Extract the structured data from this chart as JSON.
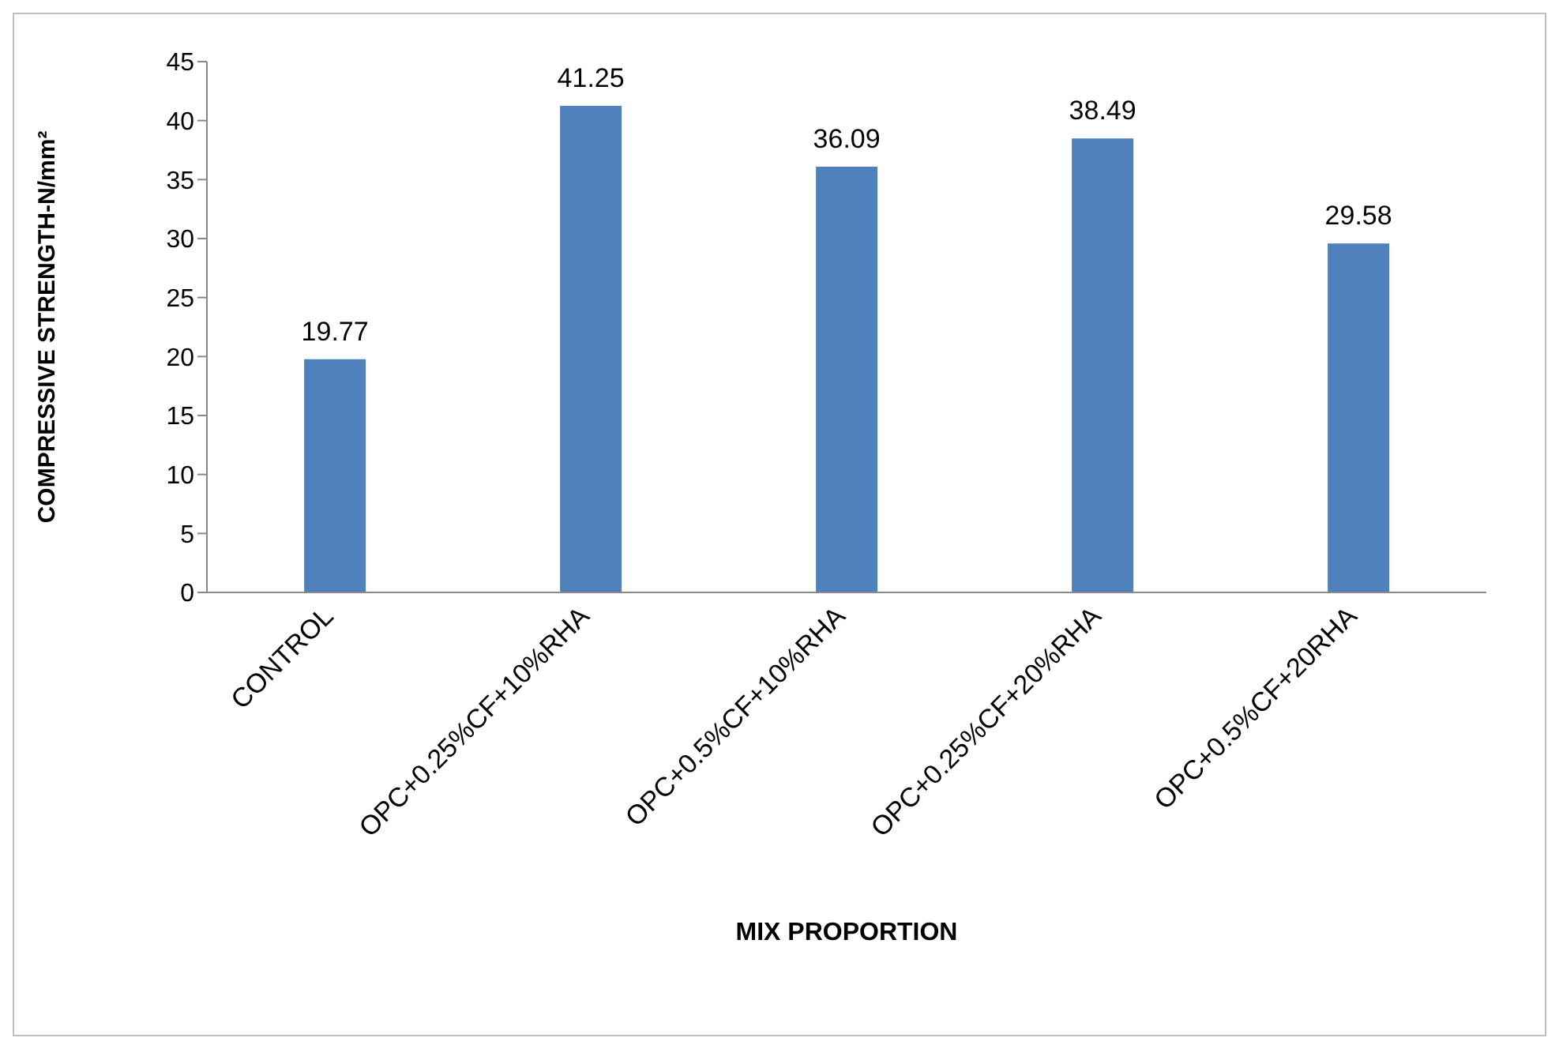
{
  "chart_data": {
    "type": "bar",
    "xlabel": "MIX PROPORTION",
    "ylabel": "COMPRESSIVE STRENGTH-N/mm²",
    "categories": [
      "CONTROL",
      "OPC+0.25%CF+10%RHA",
      "OPC+0.5%CF+10%RHA",
      "OPC+0.25%CF+20%RHA",
      "OPC+0.5%CF+20RHA"
    ],
    "values": [
      19.77,
      41.25,
      36.09,
      38.49,
      29.58
    ],
    "color": "#4f81bd",
    "ylim": [
      0,
      45
    ],
    "yticks": [
      0,
      5,
      10,
      15,
      20,
      25,
      30,
      35,
      40,
      45
    ],
    "data_labels": true
  }
}
